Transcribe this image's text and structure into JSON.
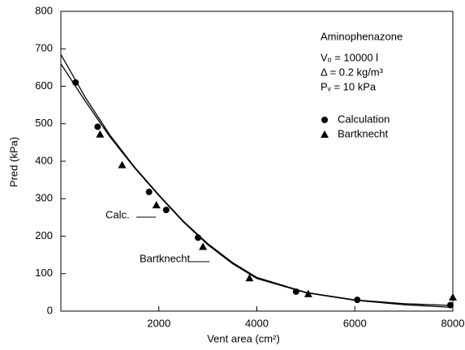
{
  "chart_data": {
    "type": "scatter",
    "x_label": "Vent area (cm²)",
    "y_label": "Pred (kPa)",
    "xlim": [
      0,
      8000
    ],
    "xticks": [
      2000,
      4000,
      6000,
      8000
    ],
    "ylim": [
      0,
      800
    ],
    "yticks": [
      0,
      100,
      200,
      300,
      400,
      500,
      600,
      700,
      800
    ],
    "annotations": [
      "Aminophenazone",
      "Vₒ = 10000 l",
      "Δ = 0.2 kg/m³",
      "Pᵥ = 10 kPa"
    ],
    "series": [
      {
        "name": "Calculation",
        "marker": "circle",
        "color": "#000000",
        "x": [
          300,
          750,
          1800,
          2150,
          2800,
          4800,
          6050,
          7950
        ],
        "values": [
          610,
          492,
          318,
          270,
          196,
          52,
          30,
          16
        ]
      },
      {
        "name": "Bartknecht",
        "marker": "triangle",
        "color": "#000000",
        "x": [
          800,
          1250,
          1950,
          2900,
          3850,
          5050,
          8000
        ],
        "values": [
          472,
          390,
          283,
          172,
          88,
          46,
          37
        ]
      }
    ],
    "curves": [
      {
        "name": "Calc.",
        "color": "#000000",
        "x": [
          0,
          500,
          1000,
          1500,
          2000,
          2500,
          3000,
          3500,
          4000,
          5000,
          6000,
          7000,
          8000
        ],
        "values": [
          685,
          570,
          470,
          385,
          310,
          240,
          180,
          130,
          90,
          50,
          30,
          20,
          15
        ]
      },
      {
        "name": "Bartknecht",
        "color": "#000000",
        "x": [
          0,
          500,
          1000,
          1500,
          2000,
          2500,
          3000,
          3500,
          4000,
          5000,
          6000,
          7000,
          8000
        ],
        "values": [
          660,
          560,
          465,
          383,
          308,
          238,
          177,
          127,
          87,
          49,
          29,
          17,
          10
        ]
      }
    ]
  }
}
